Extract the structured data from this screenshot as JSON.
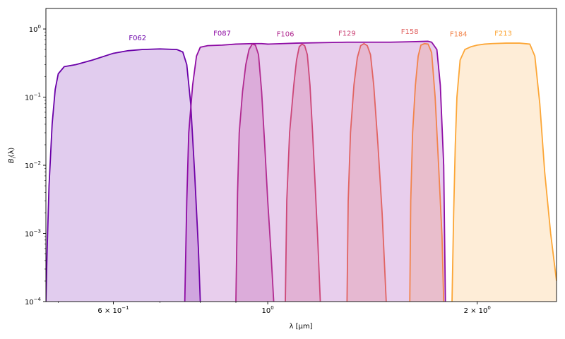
{
  "chart_data": {
    "type": "area",
    "xlabel": "λ [μm]",
    "ylabel": "B_i(λ)",
    "xscale": "log",
    "yscale": "log",
    "xlim": [
      0.48,
      2.6
    ],
    "ylim": [
      0.0001,
      2.0
    ],
    "x_ticks": [
      {
        "value": 0.6,
        "mantissa": "6",
        "base": "10",
        "exp": "−1"
      },
      {
        "value": 1.0,
        "mantissa": "",
        "base": "10",
        "exp": "0"
      },
      {
        "value": 2.0,
        "mantissa": "2",
        "base": "10",
        "exp": "0"
      }
    ],
    "y_ticks": [
      {
        "value": 0.0001,
        "base": "10",
        "exp": "−4"
      },
      {
        "value": 0.001,
        "base": "10",
        "exp": "−3"
      },
      {
        "value": 0.01,
        "base": "10",
        "exp": "−2"
      },
      {
        "value": 0.1,
        "base": "10",
        "exp": "−1"
      },
      {
        "value": 1.0,
        "base": "10",
        "exp": "0"
      }
    ],
    "grid": false,
    "legend": "none",
    "series": [
      {
        "name": "F062",
        "color": "#6a00a8",
        "label_pos": [
          0.65,
          0.68
        ],
        "points": [
          [
            0.48,
            0.0001
          ],
          [
            0.482,
            0.0006
          ],
          [
            0.485,
            0.005
          ],
          [
            0.49,
            0.04
          ],
          [
            0.495,
            0.13
          ],
          [
            0.5,
            0.22
          ],
          [
            0.51,
            0.28
          ],
          [
            0.53,
            0.3
          ],
          [
            0.56,
            0.35
          ],
          [
            0.6,
            0.44
          ],
          [
            0.63,
            0.48
          ],
          [
            0.66,
            0.5
          ],
          [
            0.7,
            0.51
          ],
          [
            0.74,
            0.5
          ],
          [
            0.755,
            0.46
          ],
          [
            0.765,
            0.3
          ],
          [
            0.775,
            0.08
          ],
          [
            0.785,
            0.008
          ],
          [
            0.795,
            0.0006
          ],
          [
            0.8,
            0.0001
          ]
        ]
      },
      {
        "name": "F087",
        "color": "#8e0ca4",
        "label_pos": [
          0.86,
          0.8
        ],
        "points": [
          [
            0.76,
            0.0001
          ],
          [
            0.765,
            0.003
          ],
          [
            0.77,
            0.03
          ],
          [
            0.78,
            0.15
          ],
          [
            0.79,
            0.4
          ],
          [
            0.8,
            0.54
          ],
          [
            0.82,
            0.57
          ],
          [
            0.86,
            0.58
          ],
          [
            0.9,
            0.6
          ],
          [
            0.95,
            0.61
          ],
          [
            0.98,
            0.61
          ],
          [
            1.0,
            0.6
          ],
          [
            1.05,
            0.61
          ],
          [
            1.1,
            0.62
          ],
          [
            1.2,
            0.63
          ],
          [
            1.3,
            0.64
          ],
          [
            1.4,
            0.64
          ],
          [
            1.5,
            0.64
          ],
          [
            1.6,
            0.65
          ],
          [
            1.7,
            0.66
          ],
          [
            1.72,
            0.64
          ],
          [
            1.75,
            0.5
          ],
          [
            1.77,
            0.15
          ],
          [
            1.79,
            0.01
          ],
          [
            1.8,
            0.0001
          ]
        ]
      },
      {
        "name": "F106",
        "color": "#b12a90",
        "label_pos": [
          1.06,
          0.78
        ],
        "points": [
          [
            0.9,
            0.0001
          ],
          [
            0.905,
            0.004
          ],
          [
            0.91,
            0.03
          ],
          [
            0.92,
            0.12
          ],
          [
            0.93,
            0.3
          ],
          [
            0.94,
            0.5
          ],
          [
            0.95,
            0.6
          ],
          [
            0.96,
            0.58
          ],
          [
            0.97,
            0.42
          ],
          [
            0.98,
            0.12
          ],
          [
            0.99,
            0.02
          ],
          [
            1.0,
            0.003
          ],
          [
            1.01,
            0.0006
          ],
          [
            1.02,
            0.0001
          ]
        ]
      },
      {
        "name": "F129",
        "color": "#cc4778",
        "label_pos": [
          1.3,
          0.8
        ],
        "points": [
          [
            1.06,
            0.0001
          ],
          [
            1.065,
            0.003
          ],
          [
            1.075,
            0.03
          ],
          [
            1.09,
            0.15
          ],
          [
            1.1,
            0.35
          ],
          [
            1.11,
            0.55
          ],
          [
            1.12,
            0.6
          ],
          [
            1.13,
            0.57
          ],
          [
            1.14,
            0.42
          ],
          [
            1.15,
            0.15
          ],
          [
            1.16,
            0.03
          ],
          [
            1.17,
            0.005
          ],
          [
            1.18,
            0.0008
          ],
          [
            1.19,
            0.0001
          ]
        ]
      },
      {
        "name": "F158",
        "color": "#e16462",
        "label_pos": [
          1.6,
          0.85
        ],
        "points": [
          [
            1.3,
            0.0001
          ],
          [
            1.305,
            0.003
          ],
          [
            1.315,
            0.03
          ],
          [
            1.33,
            0.15
          ],
          [
            1.345,
            0.38
          ],
          [
            1.36,
            0.57
          ],
          [
            1.375,
            0.61
          ],
          [
            1.39,
            0.57
          ],
          [
            1.405,
            0.42
          ],
          [
            1.42,
            0.15
          ],
          [
            1.44,
            0.02
          ],
          [
            1.46,
            0.002
          ],
          [
            1.48,
            0.0001
          ]
        ]
      },
      {
        "name": "F184",
        "color": "#f2844b",
        "label_pos": [
          1.88,
          0.78
        ],
        "points": [
          [
            1.6,
            0.0001
          ],
          [
            1.605,
            0.003
          ],
          [
            1.615,
            0.03
          ],
          [
            1.63,
            0.15
          ],
          [
            1.645,
            0.4
          ],
          [
            1.66,
            0.58
          ],
          [
            1.68,
            0.61
          ],
          [
            1.7,
            0.6
          ],
          [
            1.72,
            0.45
          ],
          [
            1.74,
            0.1
          ],
          [
            1.76,
            0.01
          ],
          [
            1.78,
            0.0009
          ],
          [
            1.79,
            0.0001
          ]
        ]
      },
      {
        "name": "F213",
        "color": "#fca636",
        "label_pos": [
          2.18,
          0.8
        ],
        "points": [
          [
            1.84,
            0.0001
          ],
          [
            1.85,
            0.002
          ],
          [
            1.86,
            0.02
          ],
          [
            1.87,
            0.1
          ],
          [
            1.89,
            0.35
          ],
          [
            1.92,
            0.5
          ],
          [
            1.96,
            0.55
          ],
          [
            2.0,
            0.58
          ],
          [
            2.05,
            0.6
          ],
          [
            2.1,
            0.61
          ],
          [
            2.2,
            0.62
          ],
          [
            2.3,
            0.62
          ],
          [
            2.38,
            0.6
          ],
          [
            2.42,
            0.4
          ],
          [
            2.46,
            0.08
          ],
          [
            2.5,
            0.008
          ],
          [
            2.55,
            0.001
          ],
          [
            2.6,
            0.0002
          ]
        ]
      }
    ]
  }
}
